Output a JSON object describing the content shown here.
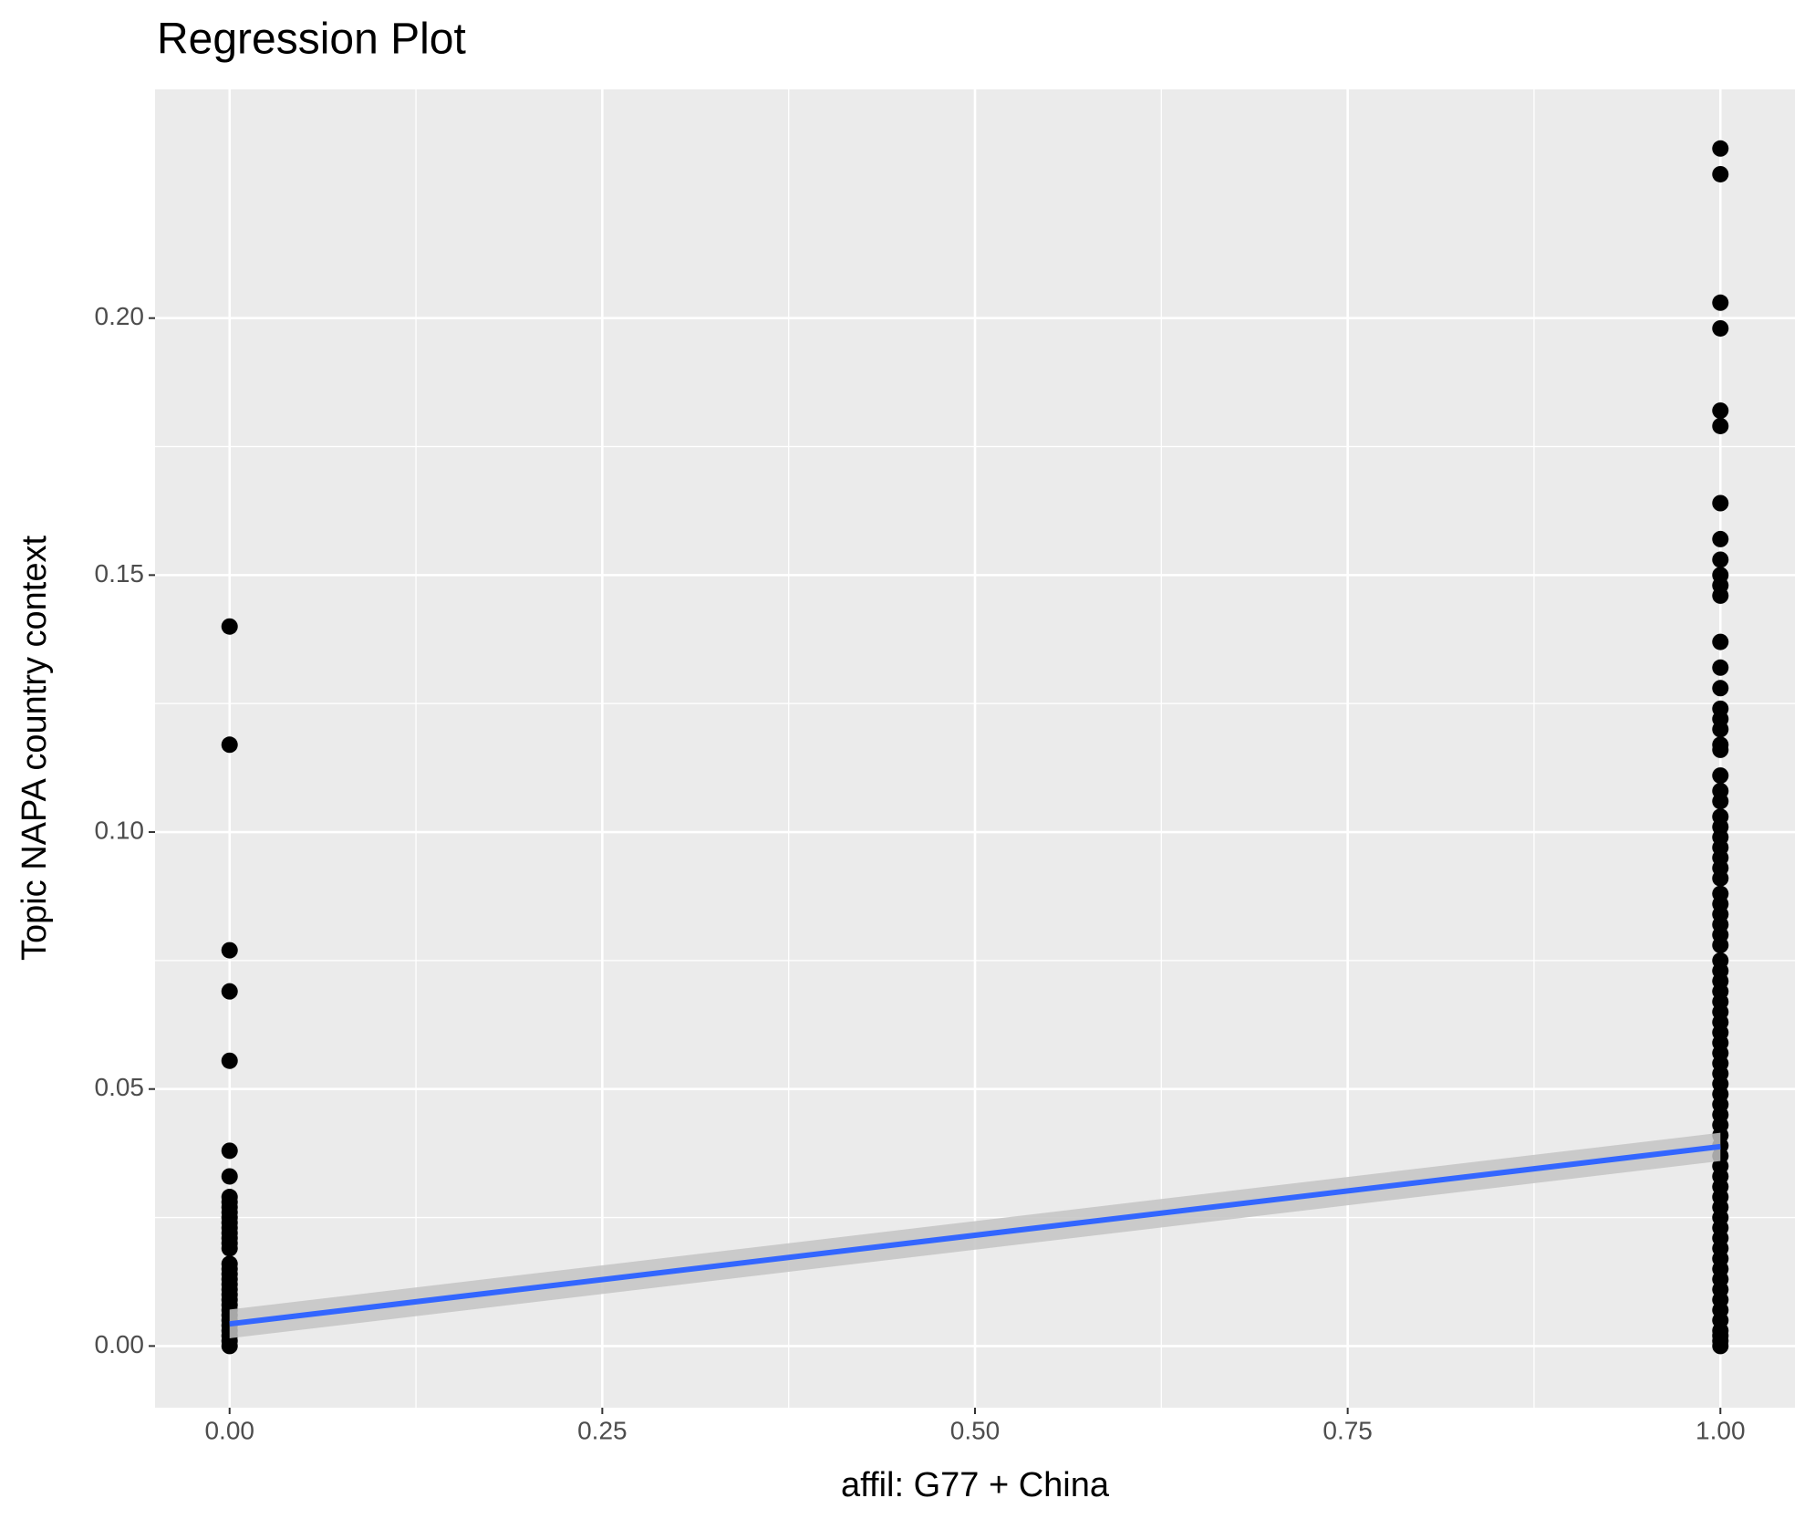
{
  "chart_data": {
    "type": "scatter",
    "title": "Regression Plot",
    "x_label": "affil: G77 + China",
    "y_label": "Topic NAPA country context",
    "xlim": [
      -0.05,
      1.05
    ],
    "ylim": [
      -0.012,
      0.2445
    ],
    "xticks": [
      {
        "value": 0,
        "label": "0.00"
      },
      {
        "value": 0.25,
        "label": "0.25"
      },
      {
        "value": 0.5,
        "label": "0.50"
      },
      {
        "value": 0.75,
        "label": "0.75"
      },
      {
        "value": 1,
        "label": "1.00"
      }
    ],
    "yticks": [
      {
        "value": 0,
        "label": "0.00"
      },
      {
        "value": 0.05,
        "label": "0.05"
      },
      {
        "value": 0.1,
        "label": "0.10"
      },
      {
        "value": 0.15,
        "label": "0.15"
      },
      {
        "value": 0.2,
        "label": "0.20"
      }
    ],
    "grid": true,
    "minor_grid": true,
    "point_color": "#000000",
    "points": [
      [
        0,
        0.14
      ],
      [
        0,
        0.117
      ],
      [
        0,
        0.077
      ],
      [
        0,
        0.069
      ],
      [
        0,
        0.0555
      ],
      [
        0,
        0.038
      ],
      [
        0,
        0.033
      ],
      [
        0,
        0.029
      ],
      [
        0,
        0.028
      ],
      [
        0,
        0.027
      ],
      [
        0,
        0.026
      ],
      [
        0,
        0.025
      ],
      [
        0,
        0.024
      ],
      [
        0,
        0.023
      ],
      [
        0,
        0.022
      ],
      [
        0,
        0.021
      ],
      [
        0,
        0.02
      ],
      [
        0,
        0.019
      ],
      [
        0,
        0.016
      ],
      [
        0,
        0.015
      ],
      [
        0,
        0.014
      ],
      [
        0,
        0.013
      ],
      [
        0,
        0.012
      ],
      [
        0,
        0.011
      ],
      [
        0,
        0.01
      ],
      [
        0,
        0.009
      ],
      [
        0,
        0.008
      ],
      [
        0,
        0.007
      ],
      [
        0,
        0.006
      ],
      [
        0,
        0.005
      ],
      [
        0,
        0.004
      ],
      [
        0,
        0.003
      ],
      [
        0,
        0.002
      ],
      [
        0,
        0.001
      ],
      [
        0,
        0.0
      ],
      [
        1,
        0.233
      ],
      [
        1,
        0.228
      ],
      [
        1,
        0.203
      ],
      [
        1,
        0.198
      ],
      [
        1,
        0.182
      ],
      [
        1,
        0.179
      ],
      [
        1,
        0.164
      ],
      [
        1,
        0.157
      ],
      [
        1,
        0.153
      ],
      [
        1,
        0.15
      ],
      [
        1,
        0.148
      ],
      [
        1,
        0.146
      ],
      [
        1,
        0.137
      ],
      [
        1,
        0.132
      ],
      [
        1,
        0.128
      ],
      [
        1,
        0.124
      ],
      [
        1,
        0.122
      ],
      [
        1,
        0.12
      ],
      [
        1,
        0.117
      ],
      [
        1,
        0.116
      ],
      [
        1,
        0.111
      ],
      [
        1,
        0.108
      ],
      [
        1,
        0.106
      ],
      [
        1,
        0.103
      ],
      [
        1,
        0.101
      ],
      [
        1,
        0.099
      ],
      [
        1,
        0.097
      ],
      [
        1,
        0.095
      ],
      [
        1,
        0.093
      ],
      [
        1,
        0.091
      ],
      [
        1,
        0.088
      ],
      [
        1,
        0.086
      ],
      [
        1,
        0.084
      ],
      [
        1,
        0.082
      ],
      [
        1,
        0.08
      ],
      [
        1,
        0.078
      ],
      [
        1,
        0.075
      ],
      [
        1,
        0.073
      ],
      [
        1,
        0.071
      ],
      [
        1,
        0.069
      ],
      [
        1,
        0.067
      ],
      [
        1,
        0.065
      ],
      [
        1,
        0.063
      ],
      [
        1,
        0.061
      ],
      [
        1,
        0.059
      ],
      [
        1,
        0.057
      ],
      [
        1,
        0.055
      ],
      [
        1,
        0.053
      ],
      [
        1,
        0.051
      ],
      [
        1,
        0.049
      ],
      [
        1,
        0.047
      ],
      [
        1,
        0.045
      ],
      [
        1,
        0.043
      ],
      [
        1,
        0.041
      ],
      [
        1,
        0.039
      ],
      [
        1,
        0.037
      ],
      [
        1,
        0.035
      ],
      [
        1,
        0.033
      ],
      [
        1,
        0.031
      ],
      [
        1,
        0.029
      ],
      [
        1,
        0.027
      ],
      [
        1,
        0.025
      ],
      [
        1,
        0.023
      ],
      [
        1,
        0.021
      ],
      [
        1,
        0.019
      ],
      [
        1,
        0.017
      ],
      [
        1,
        0.015
      ],
      [
        1,
        0.013
      ],
      [
        1,
        0.011
      ],
      [
        1,
        0.009
      ],
      [
        1,
        0.007
      ],
      [
        1,
        0.005
      ],
      [
        1,
        0.003
      ],
      [
        1,
        0.002
      ],
      [
        1,
        0.001
      ],
      [
        1,
        0.0
      ]
    ],
    "fit": {
      "color": "#3366ff",
      "band_color": "#c4c4c4",
      "x": [
        0,
        1
      ],
      "y": [
        0.0043,
        0.0388
      ],
      "lower": [
        0.0015,
        0.036
      ],
      "upper": [
        0.0071,
        0.0415
      ]
    }
  }
}
